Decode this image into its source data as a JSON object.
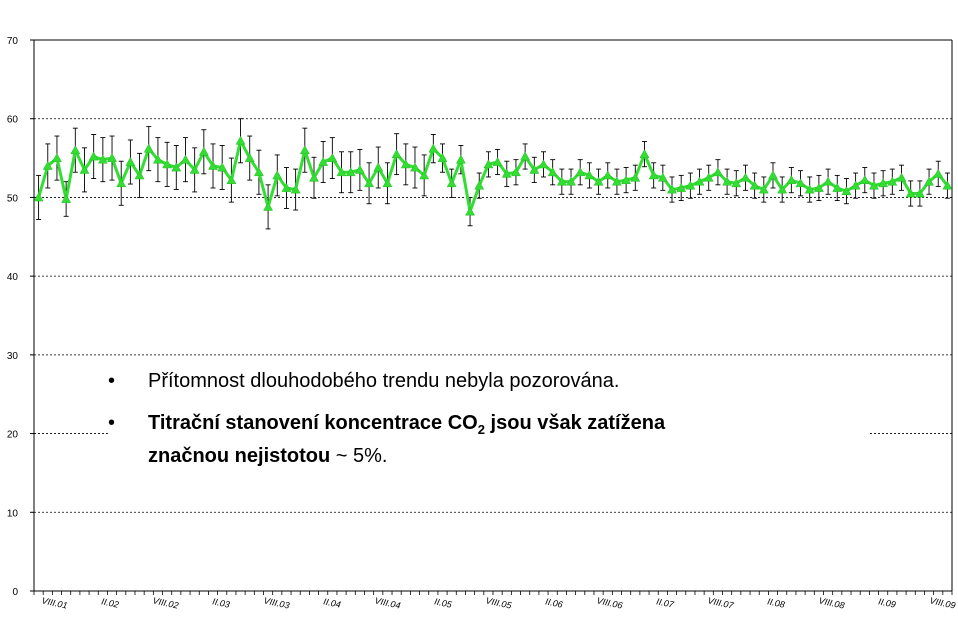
{
  "chart_data": {
    "type": "line",
    "ylim": [
      0,
      70
    ],
    "yticks": [
      0,
      10,
      20,
      30,
      40,
      50,
      60,
      70
    ],
    "grid": "horizontal-dashed",
    "series_color": "#33dd33",
    "error_bar_color": "#000000",
    "x_tick_labels": [
      "VIII.01",
      "II.02",
      "VIII.02",
      "II.03",
      "VIII.03",
      "II.04",
      "VIII.04",
      "II.05",
      "VIII.05",
      "II.06",
      "VIII.06",
      "II.07",
      "VIII.07",
      "II.08",
      "VIII.08",
      "II.09",
      "VIII.09"
    ],
    "series": [
      {
        "values": [
          50.0,
          54.0,
          55.0,
          49.8,
          56.0,
          53.5,
          55.2,
          54.8,
          55.0,
          51.8,
          54.5,
          52.8,
          56.2,
          54.8,
          54.2,
          53.8,
          54.8,
          53.5,
          55.8,
          54.0,
          53.8,
          52.2,
          57.2,
          55.0,
          53.2,
          48.8,
          52.8,
          51.2,
          51.0,
          56.0,
          52.5,
          54.5,
          55.0,
          53.2,
          53.2,
          53.5,
          51.8,
          53.8,
          51.8,
          55.5,
          54.2,
          53.8,
          52.8,
          56.2,
          55.0,
          51.8,
          54.8,
          48.2,
          51.5,
          54.2,
          54.5,
          53.0,
          53.2,
          55.2,
          53.5,
          54.2,
          53.2,
          52.0,
          52.0,
          53.2,
          52.8,
          52.0,
          52.8,
          52.0,
          52.2,
          52.5,
          55.5,
          52.8,
          52.5,
          51.0,
          51.2,
          51.5,
          52.0,
          52.5,
          53.2,
          52.0,
          51.8,
          52.5,
          51.5,
          51.0,
          52.8,
          51.0,
          52.2,
          51.8,
          51.0,
          51.2,
          52.0,
          51.2,
          50.8,
          51.5,
          52.2,
          51.5,
          51.8,
          52.0,
          52.5,
          50.5,
          50.5,
          52.0,
          53.0,
          51.5
        ],
        "error": [
          2.8,
          2.8,
          2.8,
          2.2,
          2.8,
          2.8,
          2.8,
          2.8,
          2.8,
          2.8,
          2.8,
          2.8,
          2.8,
          2.8,
          2.8,
          2.8,
          2.8,
          2.8,
          2.8,
          2.8,
          2.8,
          2.8,
          2.8,
          2.8,
          2.8,
          2.8,
          2.6,
          2.6,
          2.6,
          2.8,
          2.6,
          2.6,
          2.6,
          2.6,
          2.6,
          2.6,
          2.6,
          2.6,
          2.6,
          2.6,
          2.6,
          2.6,
          2.6,
          1.8,
          1.8,
          1.8,
          1.8,
          1.8,
          1.6,
          1.6,
          1.6,
          1.6,
          1.6,
          1.6,
          1.6,
          1.6,
          1.6,
          1.6,
          1.6,
          1.6,
          1.6,
          1.6,
          1.6,
          1.6,
          1.6,
          1.6,
          1.6,
          1.6,
          1.6,
          1.6,
          1.6,
          1.6,
          1.6,
          1.6,
          1.6,
          1.6,
          1.6,
          1.6,
          1.6,
          1.6,
          1.6,
          1.6,
          1.6,
          1.6,
          1.6,
          1.6,
          1.6,
          1.6,
          1.6,
          1.6,
          1.6,
          1.6,
          1.6,
          1.6,
          1.6,
          1.6,
          1.6,
          1.6,
          1.6,
          1.6
        ]
      }
    ]
  },
  "notes": {
    "bullet_1_symbol": "•",
    "bullet_1_text": "Přítomnost dlouhodobého trendu nebyla pozorována.",
    "bullet_2_symbol": "•",
    "bullet_2_bold_a": "Titrační stanovení koncentrace CO",
    "bullet_2_sub": "2",
    "bullet_2_bold_b": " jsou však zatížena",
    "bullet_2_bold_c": "značnou nejistotou",
    "bullet_2_tail": " ~ 5%."
  }
}
